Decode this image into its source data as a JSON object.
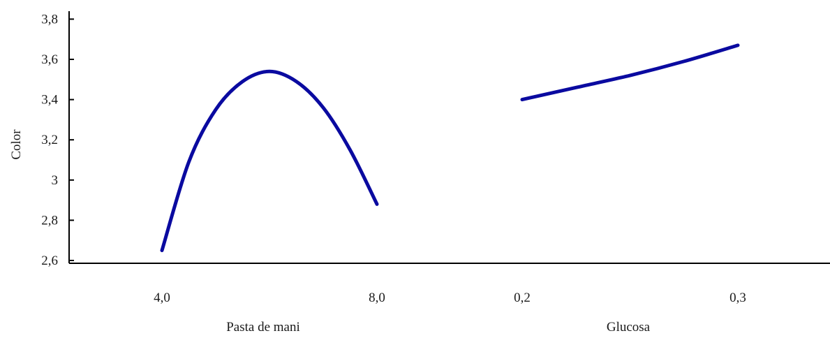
{
  "chart_data": {
    "type": "line",
    "ylabel": "Color",
    "ylim": [
      2.58,
      3.86
    ],
    "y_ticks": [
      2.6,
      2.8,
      3.0,
      3.2,
      3.4,
      3.6,
      3.8
    ],
    "y_tick_labels": [
      "2,6",
      "2,8",
      "3",
      "3,2",
      "3,4",
      "3,6",
      "3,8"
    ],
    "grid": false,
    "color": "#0a0aa0",
    "panels": [
      {
        "xlabel": "Pasta de mani",
        "x_ticks": [
          4.0,
          8.0
        ],
        "x_tick_labels": [
          "4,0",
          "8,0"
        ],
        "series": [
          {
            "x": [
              4.0,
              4.5,
              5.0,
              5.5,
              6.0,
              6.5,
              7.0,
              7.5,
              8.0
            ],
            "y": [
              2.65,
              3.09,
              3.35,
              3.49,
              3.54,
              3.49,
              3.36,
              3.15,
              2.88
            ]
          }
        ]
      },
      {
        "xlabel": "Glucosa",
        "x_ticks": [
          0.2,
          0.3
        ],
        "x_tick_labels": [
          "0,2",
          "0,3"
        ],
        "series": [
          {
            "x": [
              0.2,
              0.225,
              0.25,
              0.275,
              0.3
            ],
            "y": [
              3.4,
              3.46,
              3.52,
              3.59,
              3.67
            ]
          }
        ]
      }
    ]
  }
}
